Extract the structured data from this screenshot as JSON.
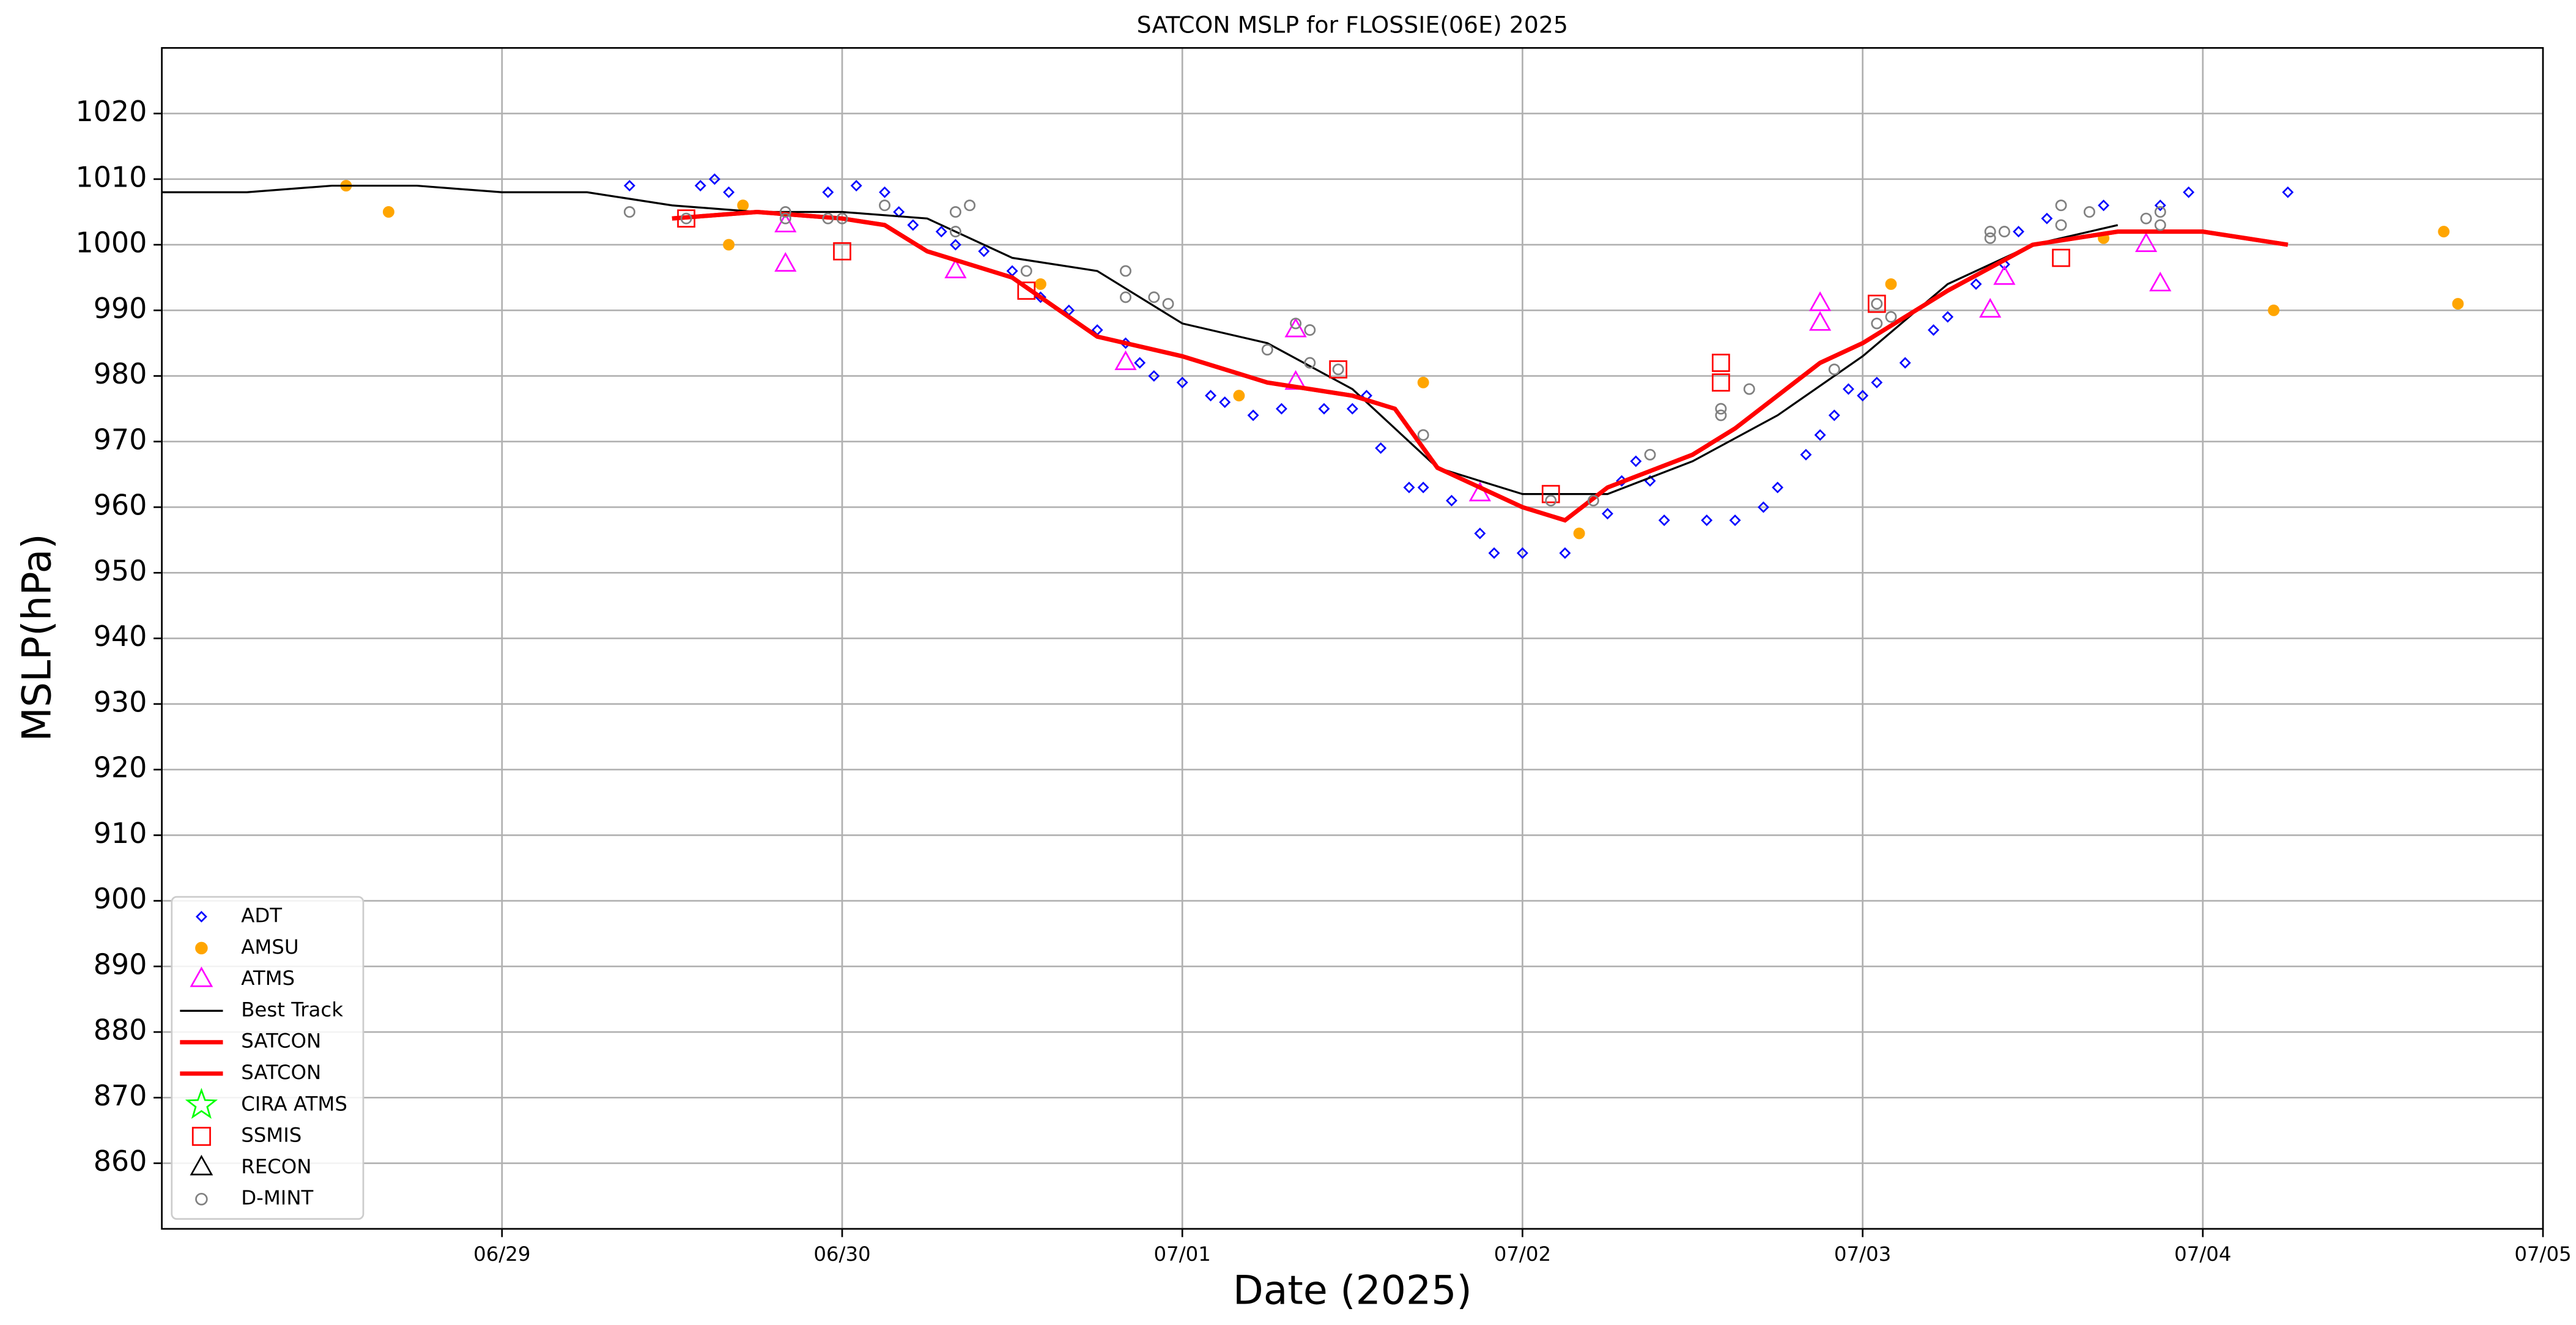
{
  "chart_data": {
    "type": "scatter",
    "title": "SATCON MSLP for FLOSSIE(06E) 2025",
    "x_label": "Date (2025)",
    "y_label": "MSLP(hPa)",
    "xlim": [
      "2025-06-28T00:00",
      "2025-07-05T00:00"
    ],
    "xticks": [
      {
        "value": "2025-06-29T00:00",
        "label": "06/29"
      },
      {
        "value": "2025-06-30T00:00",
        "label": "06/30"
      },
      {
        "value": "2025-07-01T00:00",
        "label": "07/01"
      },
      {
        "value": "2025-07-02T00:00",
        "label": "07/02"
      },
      {
        "value": "2025-07-03T00:00",
        "label": "07/03"
      },
      {
        "value": "2025-07-04T00:00",
        "label": "07/04"
      },
      {
        "value": "2025-07-05T00:00",
        "label": "07/05"
      }
    ],
    "ylim": [
      850,
      1030
    ],
    "yticks": [
      860,
      870,
      880,
      890,
      900,
      910,
      920,
      930,
      940,
      950,
      960,
      970,
      980,
      990,
      1000,
      1010,
      1020
    ],
    "grid": true,
    "legend": "lower left",
    "series": [
      {
        "name": "ADT",
        "color": "#0000ff",
        "marker": "diamond",
        "filled": false,
        "x": [
          "2025-06-29T09:00",
          "2025-06-29T14:00",
          "2025-06-29T15:00",
          "2025-06-29T16:00",
          "2025-06-29T23:00",
          "2025-06-30T01:00",
          "2025-06-30T03:00",
          "2025-06-30T04:00",
          "2025-06-30T05:00",
          "2025-06-30T07:00",
          "2025-06-30T08:00",
          "2025-06-30T10:00",
          "2025-06-30T12:00",
          "2025-06-30T14:00",
          "2025-06-30T16:00",
          "2025-06-30T18:00",
          "2025-06-30T20:00",
          "2025-06-30T21:00",
          "2025-06-30T22:00",
          "2025-07-01T00:00",
          "2025-07-01T02:00",
          "2025-07-01T03:00",
          "2025-07-01T05:00",
          "2025-07-01T07:00",
          "2025-07-01T10:00",
          "2025-07-01T12:00",
          "2025-07-01T13:00",
          "2025-07-01T14:00",
          "2025-07-01T16:00",
          "2025-07-01T17:00",
          "2025-07-01T19:00",
          "2025-07-01T21:00",
          "2025-07-01T22:00",
          "2025-07-02T00:00",
          "2025-07-02T03:00",
          "2025-07-02T04:00",
          "2025-07-02T06:00",
          "2025-07-02T07:00",
          "2025-07-02T08:00",
          "2025-07-02T09:00",
          "2025-07-02T10:00",
          "2025-07-02T13:00",
          "2025-07-02T15:00",
          "2025-07-02T17:00",
          "2025-07-02T18:00",
          "2025-07-02T20:00",
          "2025-07-02T21:00",
          "2025-07-02T22:00",
          "2025-07-02T23:00",
          "2025-07-03T00:00",
          "2025-07-03T01:00",
          "2025-07-03T03:00",
          "2025-07-03T05:00",
          "2025-07-03T06:00",
          "2025-07-03T08:00",
          "2025-07-03T10:00",
          "2025-07-03T11:00",
          "2025-07-03T13:00",
          "2025-07-03T17:00",
          "2025-07-03T21:00",
          "2025-07-03T23:00",
          "2025-07-04T06:00"
        ],
        "values": [
          1009,
          1009,
          1010,
          1008,
          1008,
          1009,
          1008,
          1005,
          1003,
          1002,
          1000,
          999,
          996,
          992,
          990,
          987,
          985,
          982,
          980,
          979,
          977,
          976,
          974,
          975,
          975,
          975,
          977,
          969,
          963,
          963,
          961,
          956,
          953,
          953,
          953,
          956,
          959,
          964,
          967,
          964,
          958,
          958,
          958,
          960,
          963,
          968,
          971,
          974,
          978,
          977,
          979,
          982,
          987,
          989,
          994,
          997,
          1002,
          1004,
          1006,
          1006,
          1008,
          1008
        ]
      },
      {
        "name": "AMSU",
        "color": "#ffa500",
        "marker": "circle",
        "filled": true,
        "x": [
          "2025-06-28T13:00",
          "2025-06-28T16:00",
          "2025-06-29T16:00",
          "2025-06-29T17:00",
          "2025-06-30T14:00",
          "2025-07-01T04:00",
          "2025-07-01T17:00",
          "2025-07-02T04:00",
          "2025-07-03T02:00",
          "2025-07-03T17:00",
          "2025-07-04T05:00",
          "2025-07-04T17:00",
          "2025-07-04T18:00"
        ],
        "values": [
          1009,
          1005,
          1000,
          1006,
          994,
          977,
          979,
          956,
          994,
          1001,
          990,
          1002,
          991
        ]
      },
      {
        "name": "ATMS",
        "color": "#ff00ff",
        "marker": "triangle",
        "filled": false,
        "x": [
          "2025-06-29T20:00",
          "2025-06-29T20:00",
          "2025-06-30T08:00",
          "2025-06-30T20:00",
          "2025-07-01T08:00",
          "2025-07-01T08:00",
          "2025-07-01T21:00",
          "2025-07-02T21:00",
          "2025-07-02T21:00",
          "2025-07-03T09:00",
          "2025-07-03T10:00",
          "2025-07-03T20:00",
          "2025-07-03T21:00"
        ],
        "values": [
          1003,
          997,
          996,
          982,
          987,
          979,
          962,
          991,
          988,
          990,
          995,
          1000,
          994
        ]
      },
      {
        "name": "Best Track",
        "color": "#000000",
        "marker": "line",
        "linewidth": 1.2,
        "x": [
          "2025-06-28T00:00",
          "2025-06-28T06:00",
          "2025-06-28T12:00",
          "2025-06-28T18:00",
          "2025-06-29T00:00",
          "2025-06-29T06:00",
          "2025-06-29T12:00",
          "2025-06-29T18:00",
          "2025-06-30T00:00",
          "2025-06-30T06:00",
          "2025-06-30T12:00",
          "2025-06-30T18:00",
          "2025-07-01T00:00",
          "2025-07-01T06:00",
          "2025-07-01T12:00",
          "2025-07-01T18:00",
          "2025-07-02T00:00",
          "2025-07-02T06:00",
          "2025-07-02T12:00",
          "2025-07-02T18:00",
          "2025-07-03T00:00",
          "2025-07-03T06:00",
          "2025-07-03T12:00",
          "2025-07-03T18:00"
        ],
        "values": [
          1008,
          1008,
          1009,
          1009,
          1008,
          1008,
          1006,
          1005,
          1005,
          1004,
          998,
          996,
          988,
          985,
          978,
          966,
          962,
          962,
          967,
          974,
          983,
          994,
          1000,
          1003
        ]
      },
      {
        "name": "SATCON",
        "color": "#ff0000",
        "marker": "line",
        "linewidth": 2.6,
        "x": [
          "2025-06-29T12:00",
          "2025-06-29T18:00",
          "2025-06-30T00:00",
          "2025-06-30T03:00",
          "2025-06-30T06:00",
          "2025-06-30T12:00",
          "2025-06-30T18:00",
          "2025-07-01T00:00",
          "2025-07-01T06:00",
          "2025-07-01T12:00",
          "2025-07-01T15:00",
          "2025-07-01T18:00",
          "2025-07-02T00:00",
          "2025-07-02T03:00",
          "2025-07-02T06:00",
          "2025-07-02T12:00",
          "2025-07-02T15:00",
          "2025-07-02T18:00",
          "2025-07-02T21:00",
          "2025-07-03T00:00",
          "2025-07-03T06:00",
          "2025-07-03T12:00",
          "2025-07-03T18:00",
          "2025-07-04T00:00",
          "2025-07-04T06:00"
        ],
        "values": [
          1004,
          1005,
          1004,
          1003,
          999,
          995,
          986,
          983,
          979,
          977,
          975,
          966,
          960,
          958,
          963,
          968,
          972,
          977,
          982,
          985,
          993,
          1000,
          1002,
          1002,
          1000
        ]
      },
      {
        "name": "SATCON",
        "color": "#ff0000",
        "marker": "line",
        "linewidth": 2.6,
        "x": [
          "2025-06-29T12:00",
          "2025-06-29T18:00",
          "2025-06-30T00:00",
          "2025-06-30T03:00",
          "2025-06-30T06:00",
          "2025-06-30T12:00",
          "2025-06-30T18:00",
          "2025-07-01T00:00",
          "2025-07-01T06:00",
          "2025-07-01T12:00",
          "2025-07-01T15:00",
          "2025-07-01T18:00",
          "2025-07-02T00:00",
          "2025-07-02T03:00",
          "2025-07-02T06:00",
          "2025-07-02T12:00",
          "2025-07-02T15:00",
          "2025-07-02T18:00",
          "2025-07-02T21:00",
          "2025-07-03T00:00",
          "2025-07-03T06:00",
          "2025-07-03T12:00",
          "2025-07-03T18:00",
          "2025-07-04T00:00",
          "2025-07-04T06:00"
        ],
        "values": [
          1004,
          1005,
          1004,
          1003,
          999,
          995,
          986,
          983,
          979,
          977,
          975,
          966,
          960,
          958,
          963,
          968,
          972,
          977,
          982,
          985,
          993,
          1000,
          1002,
          1002,
          1000
        ]
      },
      {
        "name": "CIRA ATMS",
        "color": "#00ff00",
        "marker": "star",
        "filled": false,
        "x": [],
        "values": []
      },
      {
        "name": "SSMIS",
        "color": "#ff0000",
        "marker": "square",
        "filled": false,
        "x": [
          "2025-06-29T13:00",
          "2025-06-30T00:00",
          "2025-06-30T13:00",
          "2025-07-01T11:00",
          "2025-07-02T02:00",
          "2025-07-02T14:00",
          "2025-07-02T14:00",
          "2025-07-03T01:00",
          "2025-07-03T14:00"
        ],
        "values": [
          1004,
          999,
          993,
          981,
          962,
          982,
          979,
          991,
          998
        ]
      },
      {
        "name": "RECON",
        "color": "#000000",
        "marker": "triangle",
        "filled": false,
        "x": [],
        "values": []
      },
      {
        "name": "D-MINT",
        "color": "#808080",
        "marker": "circle",
        "filled": false,
        "x": [
          "2025-06-29T09:00",
          "2025-06-29T13:00",
          "2025-06-29T20:00",
          "2025-06-29T20:00",
          "2025-06-29T23:00",
          "2025-06-30T00:00",
          "2025-06-30T03:00",
          "2025-06-30T08:00",
          "2025-06-30T09:00",
          "2025-06-30T08:00",
          "2025-06-30T13:00",
          "2025-06-30T20:00",
          "2025-06-30T20:00",
          "2025-06-30T22:00",
          "2025-06-30T23:00",
          "2025-07-01T06:00",
          "2025-07-01T08:00",
          "2025-07-01T09:00",
          "2025-07-01T09:00",
          "2025-07-01T11:00",
          "2025-07-01T17:00",
          "2025-07-02T02:00",
          "2025-07-02T05:00",
          "2025-07-02T09:00",
          "2025-07-02T14:00",
          "2025-07-02T14:00",
          "2025-07-02T16:00",
          "2025-07-02T22:00",
          "2025-07-03T01:00",
          "2025-07-03T01:00",
          "2025-07-03T02:00",
          "2025-07-03T09:00",
          "2025-07-03T09:00",
          "2025-07-03T10:00",
          "2025-07-03T14:00",
          "2025-07-03T14:00",
          "2025-07-03T16:00",
          "2025-07-03T20:00",
          "2025-07-03T21:00",
          "2025-07-03T21:00"
        ],
        "values": [
          1005,
          1004,
          1005,
          1004,
          1004,
          1004,
          1006,
          1005,
          1006,
          1002,
          996,
          996,
          992,
          992,
          991,
          984,
          988,
          987,
          982,
          981,
          971,
          961,
          961,
          968,
          975,
          974,
          978,
          981,
          988,
          991,
          989,
          1002,
          1001,
          1002,
          1006,
          1003,
          1005,
          1004,
          1005,
          1003
        ]
      }
    ]
  }
}
